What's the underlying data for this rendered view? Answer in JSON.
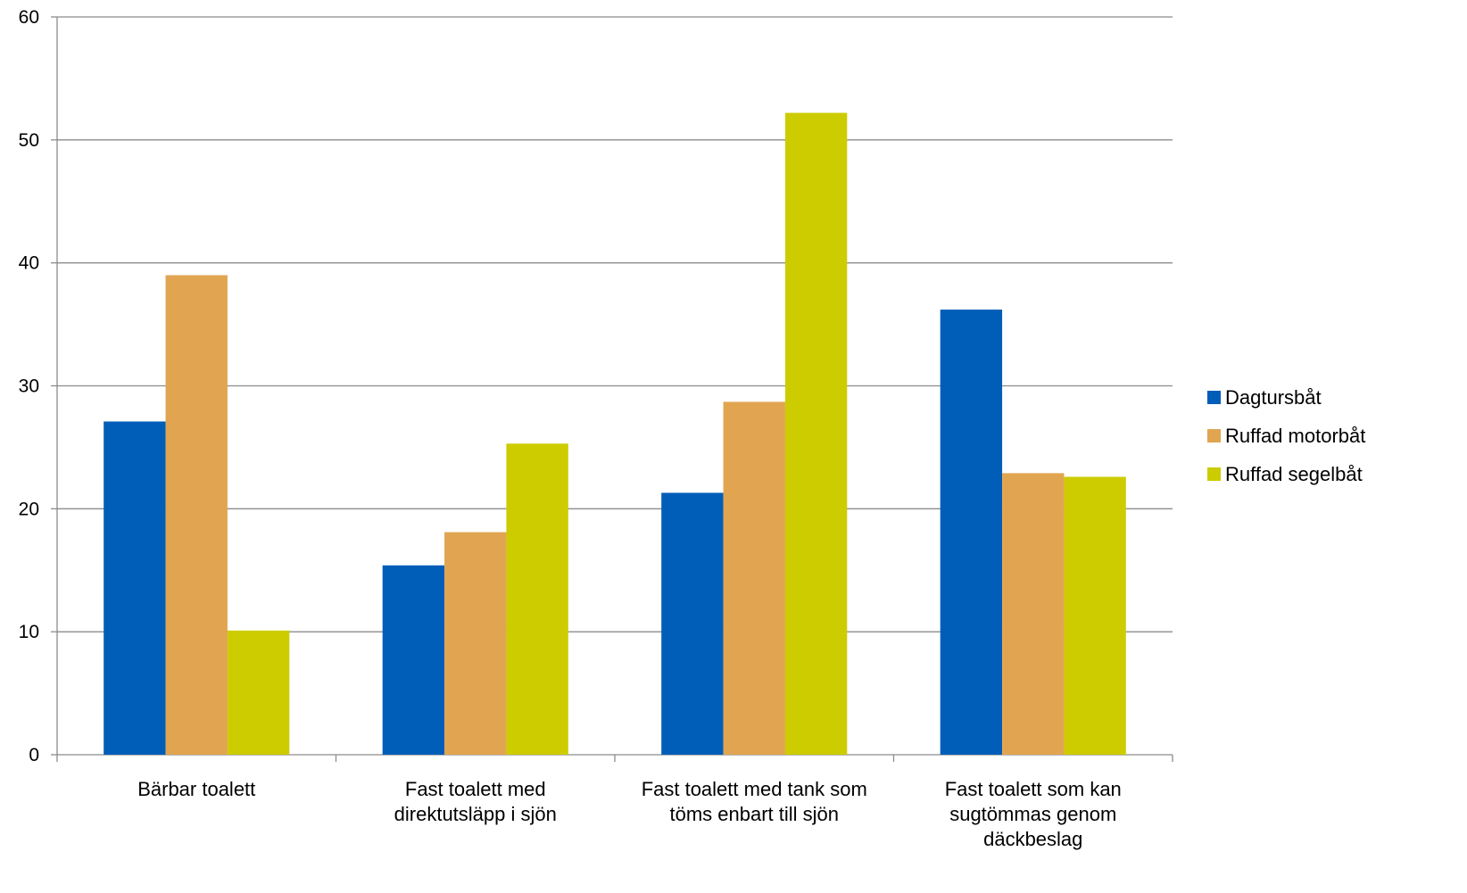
{
  "chart_data": {
    "type": "bar",
    "categories": [
      [
        "Bärbar toalett"
      ],
      [
        "Fast toalett med",
        "direktutsläpp i sjön"
      ],
      [
        "Fast toalett med tank som",
        "töms enbart till sjön"
      ],
      [
        "Fast toalett som kan",
        "sugtömmas genom",
        "däckbeslag"
      ]
    ],
    "series": [
      {
        "name": "Dagtursbåt",
        "color": "#005EB8",
        "values": [
          27.1,
          15.4,
          21.3,
          36.2
        ]
      },
      {
        "name": "Ruffad motorbåt",
        "color": "#E1A552",
        "values": [
          39.0,
          18.1,
          28.7,
          22.9
        ]
      },
      {
        "name": "Ruffad segelbåt",
        "color": "#CCCC00",
        "values": [
          10.1,
          25.3,
          52.2,
          22.6
        ]
      }
    ],
    "ylim": [
      0,
      60
    ],
    "yticks": [
      0,
      10,
      20,
      30,
      40,
      50,
      60
    ],
    "grid": true,
    "legend_position": "right"
  }
}
